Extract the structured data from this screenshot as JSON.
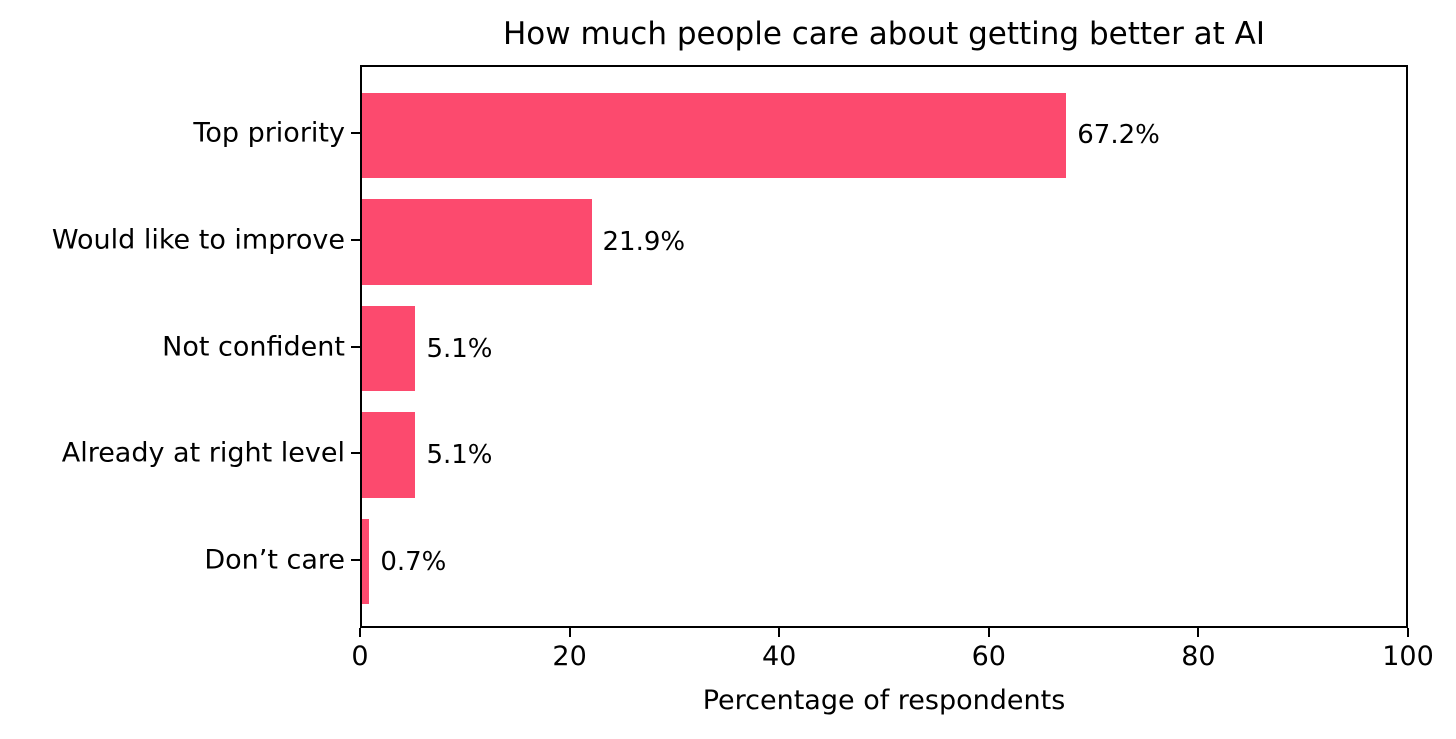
{
  "chart_data": {
    "type": "bar",
    "orientation": "horizontal",
    "title": "How much people care about getting better at AI",
    "xlabel": "Percentage of respondents",
    "categories": [
      "Top priority",
      "Would like to improve",
      "Not confident",
      "Already at right level",
      "Don’t care"
    ],
    "values": [
      67.2,
      21.9,
      5.1,
      5.1,
      0.7
    ],
    "value_labels": [
      "67.2%",
      "21.9%",
      "5.1%",
      "5.1%",
      "0.7%"
    ],
    "xlim": [
      0,
      100
    ],
    "xticks": [
      0,
      20,
      40,
      60,
      80,
      100
    ],
    "xtick_labels": [
      "0",
      "20",
      "40",
      "60",
      "80",
      "100"
    ],
    "bar_color": "#FC4A6E",
    "axis_color": "#000000",
    "text_color": "#000000",
    "background_color": "#FFFFFF",
    "grid": false,
    "legend": null
  }
}
